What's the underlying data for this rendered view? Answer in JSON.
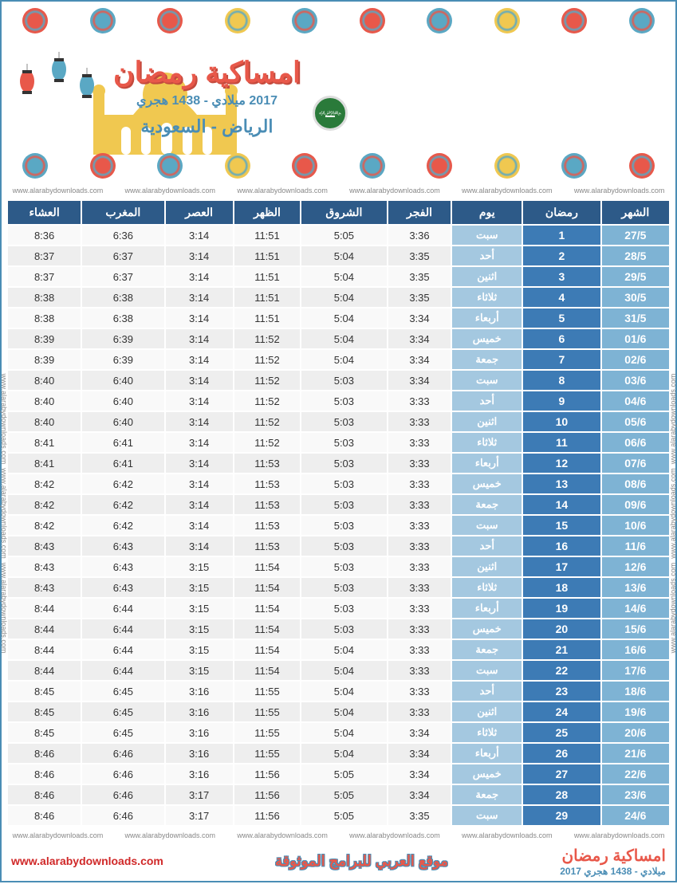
{
  "header": {
    "main_title": "امساكية رمضان",
    "sub_title": "2017 ميلادي - 1438 هجري",
    "location": "الرياض - السعودية",
    "watermark": "www.alarabydownloads.com"
  },
  "table": {
    "type": "table",
    "columns": [
      "الشهر",
      "رمضان",
      "يوم",
      "الفجر",
      "الشروق",
      "الظهر",
      "العصر",
      "المغرب",
      "العشاء"
    ],
    "col_bg_header": "#2d5a88",
    "col_bg_month": "#7eb3d4",
    "col_bg_ramadan": "#3d7bb5",
    "col_bg_day": "#a4c8e0",
    "col_bg_time_odd": "#f9f9f9",
    "col_bg_time_even": "#eeeeee",
    "header_text_color": "#ffffff",
    "rows": [
      [
        "27/5",
        "1",
        "سبت",
        "3:36",
        "5:05",
        "11:51",
        "3:14",
        "6:36",
        "8:36"
      ],
      [
        "28/5",
        "2",
        "أحد",
        "3:35",
        "5:04",
        "11:51",
        "3:14",
        "6:37",
        "8:37"
      ],
      [
        "29/5",
        "3",
        "اثنين",
        "3:35",
        "5:04",
        "11:51",
        "3:14",
        "6:37",
        "8:37"
      ],
      [
        "30/5",
        "4",
        "ثلاثاء",
        "3:35",
        "5:04",
        "11:51",
        "3:14",
        "6:38",
        "8:38"
      ],
      [
        "31/5",
        "5",
        "أربعاء",
        "3:34",
        "5:04",
        "11:51",
        "3:14",
        "6:38",
        "8:38"
      ],
      [
        "01/6",
        "6",
        "خميس",
        "3:34",
        "5:04",
        "11:52",
        "3:14",
        "6:39",
        "8:39"
      ],
      [
        "02/6",
        "7",
        "جمعة",
        "3:34",
        "5:04",
        "11:52",
        "3:14",
        "6:39",
        "8:39"
      ],
      [
        "03/6",
        "8",
        "سبت",
        "3:34",
        "5:03",
        "11:52",
        "3:14",
        "6:40",
        "8:40"
      ],
      [
        "04/6",
        "9",
        "أحد",
        "3:33",
        "5:03",
        "11:52",
        "3:14",
        "6:40",
        "8:40"
      ],
      [
        "05/6",
        "10",
        "اثنين",
        "3:33",
        "5:03",
        "11:52",
        "3:14",
        "6:40",
        "8:40"
      ],
      [
        "06/6",
        "11",
        "ثلاثاء",
        "3:33",
        "5:03",
        "11:52",
        "3:14",
        "6:41",
        "8:41"
      ],
      [
        "07/6",
        "12",
        "أربعاء",
        "3:33",
        "5:03",
        "11:53",
        "3:14",
        "6:41",
        "8:41"
      ],
      [
        "08/6",
        "13",
        "خميس",
        "3:33",
        "5:03",
        "11:53",
        "3:14",
        "6:42",
        "8:42"
      ],
      [
        "09/6",
        "14",
        "جمعة",
        "3:33",
        "5:03",
        "11:53",
        "3:14",
        "6:42",
        "8:42"
      ],
      [
        "10/6",
        "15",
        "سبت",
        "3:33",
        "5:03",
        "11:53",
        "3:14",
        "6:42",
        "8:42"
      ],
      [
        "11/6",
        "16",
        "أحد",
        "3:33",
        "5:03",
        "11:53",
        "3:14",
        "6:43",
        "8:43"
      ],
      [
        "12/6",
        "17",
        "اثنين",
        "3:33",
        "5:03",
        "11:54",
        "3:15",
        "6:43",
        "8:43"
      ],
      [
        "13/6",
        "18",
        "ثلاثاء",
        "3:33",
        "5:03",
        "11:54",
        "3:15",
        "6:43",
        "8:43"
      ],
      [
        "14/6",
        "19",
        "أربعاء",
        "3:33",
        "5:03",
        "11:54",
        "3:15",
        "6:44",
        "8:44"
      ],
      [
        "15/6",
        "20",
        "خميس",
        "3:33",
        "5:03",
        "11:54",
        "3:15",
        "6:44",
        "8:44"
      ],
      [
        "16/6",
        "21",
        "جمعة",
        "3:33",
        "5:04",
        "11:54",
        "3:15",
        "6:44",
        "8:44"
      ],
      [
        "17/6",
        "22",
        "سبت",
        "3:33",
        "5:04",
        "11:54",
        "3:15",
        "6:44",
        "8:44"
      ],
      [
        "18/6",
        "23",
        "أحد",
        "3:33",
        "5:04",
        "11:55",
        "3:16",
        "6:45",
        "8:45"
      ],
      [
        "19/6",
        "24",
        "اثنين",
        "3:33",
        "5:04",
        "11:55",
        "3:16",
        "6:45",
        "8:45"
      ],
      [
        "20/6",
        "25",
        "ثلاثاء",
        "3:34",
        "5:04",
        "11:55",
        "3:16",
        "6:45",
        "8:45"
      ],
      [
        "21/6",
        "26",
        "أربعاء",
        "3:34",
        "5:04",
        "11:55",
        "3:16",
        "6:46",
        "8:46"
      ],
      [
        "22/6",
        "27",
        "خميس",
        "3:34",
        "5:05",
        "11:56",
        "3:16",
        "6:46",
        "8:46"
      ],
      [
        "23/6",
        "28",
        "جمعة",
        "3:34",
        "5:05",
        "11:56",
        "3:17",
        "6:46",
        "8:46"
      ],
      [
        "24/6",
        "29",
        "سبت",
        "3:35",
        "5:05",
        "11:56",
        "3:17",
        "6:46",
        "8:46"
      ]
    ]
  },
  "footer": {
    "url": "www.alarabydownloads.com",
    "mid": "موقع العربي للبرامج الموثوقة",
    "right1": "امساكية رمضان",
    "right2": "2017 ميلادي - 1438 هجري"
  },
  "colors": {
    "accent_red": "#e8584a",
    "accent_blue": "#4a8db5",
    "mosque_gold": "#f0c850",
    "lantern_blue": "#5aa8c4",
    "lantern_red": "#e8584a"
  }
}
